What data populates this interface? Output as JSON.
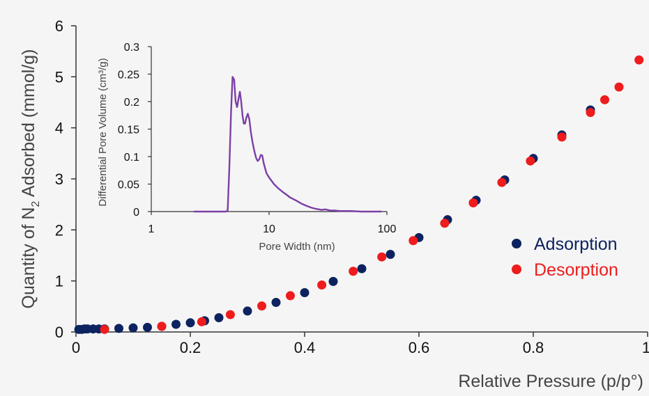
{
  "chart_data": [
    {
      "type": "scatter",
      "xlabel": "Relative Pressure (p/p°)",
      "ylabel_parts": [
        "Quantity of N",
        "2",
        " Adsorbed (mmol/g)"
      ],
      "xlim": [
        0,
        1
      ],
      "ylim": [
        0,
        6
      ],
      "x_ticks": [
        "0",
        "0.2",
        "0.4",
        "0.6",
        "0.8",
        "1"
      ],
      "y_ticks": [
        "0",
        "1",
        "2",
        "3",
        "4",
        "5",
        "6"
      ],
      "grid": false,
      "legend_position": "right",
      "series": [
        {
          "name": "Adsorption",
          "color": "#0d2360",
          "points": [
            [
              0.005,
              0.05
            ],
            [
              0.01,
              0.05
            ],
            [
              0.015,
              0.06
            ],
            [
              0.02,
              0.06
            ],
            [
              0.03,
              0.06
            ],
            [
              0.04,
              0.06
            ],
            [
              0.05,
              0.06
            ],
            [
              0.075,
              0.07
            ],
            [
              0.1,
              0.08
            ],
            [
              0.125,
              0.09
            ],
            [
              0.15,
              0.11
            ],
            [
              0.175,
              0.15
            ],
            [
              0.2,
              0.18
            ],
            [
              0.225,
              0.22
            ],
            [
              0.25,
              0.28
            ],
            [
              0.3,
              0.41
            ],
            [
              0.35,
              0.58
            ],
            [
              0.4,
              0.77
            ],
            [
              0.45,
              0.99
            ],
            [
              0.5,
              1.24
            ],
            [
              0.55,
              1.52
            ],
            [
              0.6,
              1.85
            ],
            [
              0.65,
              2.2
            ],
            [
              0.7,
              2.58
            ],
            [
              0.75,
              2.98
            ],
            [
              0.8,
              3.4
            ],
            [
              0.85,
              3.86
            ],
            [
              0.9,
              4.35
            ]
          ]
        },
        {
          "name": "Desorption",
          "color": "#ee1c1c",
          "points": [
            [
              0.05,
              0.05
            ],
            [
              0.15,
              0.11
            ],
            [
              0.22,
              0.2
            ],
            [
              0.27,
              0.34
            ],
            [
              0.325,
              0.51
            ],
            [
              0.375,
              0.71
            ],
            [
              0.43,
              0.92
            ],
            [
              0.485,
              1.19
            ],
            [
              0.535,
              1.47
            ],
            [
              0.59,
              1.79
            ],
            [
              0.645,
              2.13
            ],
            [
              0.695,
              2.53
            ],
            [
              0.745,
              2.93
            ],
            [
              0.795,
              3.35
            ],
            [
              0.85,
              3.82
            ],
            [
              0.9,
              4.3
            ],
            [
              0.925,
              4.55
            ],
            [
              0.95,
              4.8
            ],
            [
              0.985,
              5.33
            ]
          ]
        }
      ]
    },
    {
      "type": "line",
      "xlabel": "Pore Width (nm)",
      "ylabel": "Differential Pore Volume (cm³/g)",
      "x_scale": "log",
      "xlim": [
        1,
        100
      ],
      "ylim": [
        0,
        0.3
      ],
      "x_ticks": [
        {
          "value": 1,
          "label": "1"
        },
        {
          "value": 10,
          "label": "10"
        },
        {
          "value": 100,
          "label": "100"
        }
      ],
      "y_ticks": [
        "0",
        "0.05",
        "0.1",
        "0.15",
        "0.2",
        "0.25",
        "0.3"
      ],
      "color": "#7b3fa6",
      "x": [
        2.3,
        3.5,
        4.3,
        4.45,
        4.6,
        4.75,
        4.9,
        5.05,
        5.2,
        5.35,
        5.5,
        5.65,
        5.8,
        5.95,
        6.1,
        6.25,
        6.4,
        6.6,
        6.8,
        7.0,
        7.25,
        7.5,
        7.75,
        8.0,
        8.25,
        8.5,
        8.75,
        9.0,
        9.5,
        10,
        11,
        12,
        13,
        14,
        15,
        17,
        19,
        21,
        23,
        25,
        28,
        30,
        33,
        36,
        40,
        50,
        60,
        70,
        80,
        90
      ],
      "y": [
        0,
        0,
        0,
        0.002,
        0.08,
        0.18,
        0.245,
        0.24,
        0.2,
        0.19,
        0.205,
        0.218,
        0.2,
        0.175,
        0.16,
        0.16,
        0.17,
        0.178,
        0.168,
        0.145,
        0.125,
        0.11,
        0.098,
        0.092,
        0.095,
        0.103,
        0.102,
        0.088,
        0.07,
        0.062,
        0.05,
        0.042,
        0.036,
        0.031,
        0.026,
        0.02,
        0.014,
        0.01,
        0.007,
        0.005,
        0.003,
        0.004,
        0.002,
        0.002,
        0.001,
        0.001,
        0,
        0,
        0,
        0
      ]
    }
  ]
}
